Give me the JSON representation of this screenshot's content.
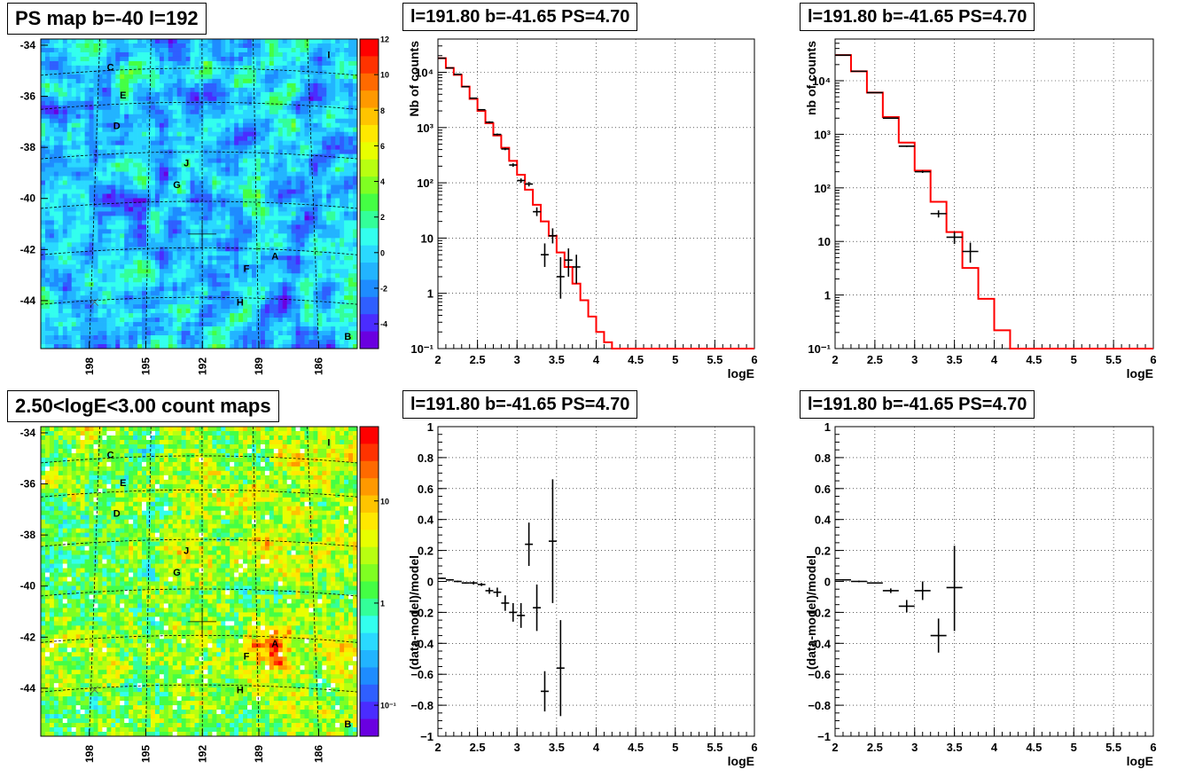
{
  "panels": {
    "ps_map": {
      "title": "PS map b=-40 l=192",
      "ytick_labels": [
        "-34",
        "-36",
        "-38",
        "-40",
        "-42",
        "-44"
      ],
      "xtick_labels": [
        "198",
        "195",
        "192",
        "189",
        "186"
      ],
      "colorbar_labels": [
        "12",
        "10",
        "8",
        "6",
        "4",
        "2",
        "0",
        "-2",
        "-4"
      ],
      "source_labels": [
        "C",
        "E",
        "D",
        "J",
        "G",
        "A",
        "F",
        "H",
        "B",
        "I"
      ]
    },
    "count_map": {
      "title": "2.50<logE<3.00 count maps",
      "ytick_labels": [
        "-34",
        "-36",
        "-38",
        "-40",
        "-42",
        "-44"
      ],
      "xtick_labels": [
        "198",
        "195",
        "192",
        "189",
        "186"
      ],
      "colorbar_labels": [
        "10",
        "1",
        "10⁻¹"
      ],
      "source_labels": [
        "C",
        "E",
        "D",
        "J",
        "G",
        "A",
        "F",
        "H",
        "B",
        "I"
      ]
    },
    "spec1": {
      "title": "l=191.80 b=-41.65 PS=4.70",
      "xlabel": "logE",
      "ylabel": "Nb of counts"
    },
    "spec2": {
      "title": "l=191.80 b=-41.65 PS=4.70",
      "xlabel": "logE",
      "ylabel": "nb of counts"
    },
    "res1": {
      "title": "l=191.80 b=-41.65 PS=4.70",
      "xlabel": "logE",
      "ylabel": "(data-model)/model"
    },
    "res2": {
      "title": "l=191.80 b=-41.65 PS=4.70",
      "xlabel": "logE",
      "ylabel": "(data-model)/model"
    }
  },
  "chart_data": [
    {
      "id": "spec1",
      "type": "line",
      "title": "l=191.80 b=-41.65 PS=4.70",
      "xlabel": "logE",
      "ylabel": "Nb of counts",
      "xlim": [
        2,
        6
      ],
      "ylim": [
        0.1,
        40000
      ],
      "log_y": true,
      "grid": true,
      "xticks": [
        "2",
        "2.5",
        "3",
        "3.5",
        "4",
        "4.5",
        "5",
        "5.5",
        "6"
      ],
      "yticks": [
        "10⁻¹",
        "1",
        "10",
        "10²",
        "10³",
        "10⁴"
      ],
      "series": [
        {
          "kind": "step",
          "color": "#ff0000",
          "edges": [
            2,
            2.1,
            2.2,
            2.3,
            2.4,
            2.5,
            2.6,
            2.7,
            2.8,
            2.9,
            3.0,
            3.1,
            3.2,
            3.3,
            3.4,
            3.5,
            3.6,
            3.7,
            3.8,
            3.9,
            4.0,
            4.1,
            4.2,
            4.3,
            4.4,
            4.5,
            4.6,
            4.7,
            4.8,
            4.9,
            5.0,
            5.5,
            6.0
          ],
          "values": [
            18000,
            12000,
            9000,
            5500,
            3300,
            2000,
            1200,
            720,
            430,
            250,
            140,
            75,
            40,
            20,
            11,
            5.5,
            3,
            1.5,
            0.75,
            0.38,
            0.2,
            0.13,
            0.1,
            0.1,
            0.1,
            0.1,
            0.1,
            0.1,
            0.1,
            0.1,
            0.1,
            0.1
          ]
        },
        {
          "kind": "errorbar",
          "color": "#000000",
          "x": [
            2.05,
            2.15,
            2.25,
            2.35,
            2.45,
            2.55,
            2.65,
            2.75,
            2.85,
            2.95,
            3.05,
            3.15,
            3.25,
            3.35,
            3.45,
            3.55,
            3.65,
            3.75
          ],
          "xerr": 0.05,
          "y": [
            18000,
            12000,
            9200,
            5500,
            3400,
            2100,
            1250,
            750,
            410,
            210,
            110,
            95,
            30,
            5,
            11,
            2,
            4,
            3
          ],
          "ylo": [
            17700,
            11800,
            9000,
            5400,
            3340,
            2050,
            1200,
            720,
            390,
            195,
            100,
            86,
            25,
            3,
            8,
            0.8,
            2,
            1.5
          ],
          "yhi": [
            18300,
            12200,
            9400,
            5600,
            3460,
            2150,
            1300,
            780,
            430,
            225,
            120,
            104,
            36,
            8,
            15,
            4.5,
            6.5,
            5
          ]
        }
      ]
    },
    {
      "id": "spec2",
      "type": "line",
      "title": "l=191.80 b=-41.65 PS=4.70",
      "xlabel": "logE",
      "ylabel": "nb of counts",
      "xlim": [
        2,
        6
      ],
      "ylim": [
        0.1,
        60000
      ],
      "log_y": true,
      "grid": true,
      "xticks": [
        "2",
        "2.5",
        "3",
        "3.5",
        "4",
        "4.5",
        "5",
        "5.5",
        "6"
      ],
      "yticks": [
        "10⁻¹",
        "1",
        "10",
        "10²",
        "10³",
        "10⁴"
      ],
      "series": [
        {
          "kind": "step",
          "color": "#ff0000",
          "edges": [
            2.0,
            2.2,
            2.4,
            2.6,
            2.8,
            3.0,
            3.2,
            3.4,
            3.6,
            3.8,
            4.0,
            4.2,
            4.4,
            4.6,
            4.8,
            5.0,
            5.5,
            6.0
          ],
          "values": [
            30000,
            15000,
            6000,
            2100,
            700,
            210,
            55,
            15,
            3.2,
            0.85,
            0.22,
            0.1,
            0.1,
            0.1,
            0.1,
            0.1,
            0.1
          ]
        },
        {
          "kind": "errorbar",
          "color": "#000000",
          "x": [
            2.1,
            2.3,
            2.5,
            2.7,
            2.9,
            3.1,
            3.3,
            3.5,
            3.7
          ],
          "xerr": 0.1,
          "y": [
            30000,
            15000,
            6000,
            2000,
            600,
            200,
            33,
            12,
            6.5
          ],
          "ylo": [
            29800,
            14850,
            5920,
            1960,
            580,
            190,
            28,
            9,
            4
          ],
          "yhi": [
            30200,
            15150,
            6080,
            2040,
            620,
            210,
            38,
            15,
            9.5
          ]
        }
      ]
    },
    {
      "id": "res1",
      "type": "scatter",
      "title": "l=191.80 b=-41.65 PS=4.70",
      "xlabel": "logE",
      "ylabel": "(data-model)/model",
      "xlim": [
        2,
        6
      ],
      "ylim": [
        -1,
        1
      ],
      "grid": true,
      "xticks": [
        "2",
        "2.5",
        "3",
        "3.5",
        "4",
        "4.5",
        "5",
        "5.5",
        "6"
      ],
      "yticks": [
        "−1",
        "−0.8",
        "−0.6",
        "−0.4",
        "−0.2",
        "0",
        "0.2",
        "0.4",
        "0.6",
        "0.8",
        "1"
      ],
      "series": [
        {
          "kind": "errorbar",
          "color": "#000000",
          "x": [
            2.05,
            2.15,
            2.25,
            2.35,
            2.45,
            2.55,
            2.65,
            2.75,
            2.85,
            2.95,
            3.05,
            3.15,
            3.25,
            3.35,
            3.45,
            3.55
          ],
          "xerr": 0.05,
          "y": [
            0.02,
            0.01,
            0.0,
            -0.01,
            -0.01,
            -0.02,
            -0.06,
            -0.07,
            -0.14,
            -0.2,
            -0.22,
            0.24,
            -0.17,
            -0.71,
            0.26,
            -0.56
          ],
          "ylo": [
            0.015,
            0.005,
            -0.005,
            -0.015,
            -0.02,
            -0.03,
            -0.08,
            -0.1,
            -0.19,
            -0.26,
            -0.3,
            0.1,
            -0.32,
            -0.84,
            -0.14,
            -0.87
          ],
          "yhi": [
            0.025,
            0.015,
            0.005,
            -0.005,
            0.0,
            -0.01,
            -0.04,
            -0.04,
            -0.09,
            -0.14,
            -0.14,
            0.38,
            -0.02,
            -0.58,
            0.66,
            -0.25
          ]
        }
      ]
    },
    {
      "id": "res2",
      "type": "scatter",
      "title": "l=191.80 b=-41.65 PS=4.70",
      "xlabel": "logE",
      "ylabel": "(data-model)/model",
      "xlim": [
        2,
        6
      ],
      "ylim": [
        -1,
        1
      ],
      "grid": true,
      "xticks": [
        "2",
        "2.5",
        "3",
        "3.5",
        "4",
        "4.5",
        "5",
        "5.5",
        "6"
      ],
      "yticks": [
        "−1",
        "−0.8",
        "−0.6",
        "−0.4",
        "−0.2",
        "0",
        "0.2",
        "0.4",
        "0.6",
        "0.8",
        "1"
      ],
      "series": [
        {
          "kind": "errorbar",
          "color": "#000000",
          "x": [
            2.1,
            2.3,
            2.5,
            2.7,
            2.9,
            3.1,
            3.3,
            3.5
          ],
          "xerr": 0.1,
          "y": [
            0.01,
            0.0,
            -0.01,
            -0.06,
            -0.16,
            -0.06,
            -0.35,
            -0.04
          ],
          "ylo": [
            0.005,
            -0.005,
            -0.015,
            -0.075,
            -0.2,
            -0.12,
            -0.46,
            -0.32
          ],
          "yhi": [
            0.015,
            0.005,
            -0.005,
            -0.045,
            -0.12,
            0.0,
            -0.24,
            0.23
          ]
        }
      ]
    }
  ]
}
